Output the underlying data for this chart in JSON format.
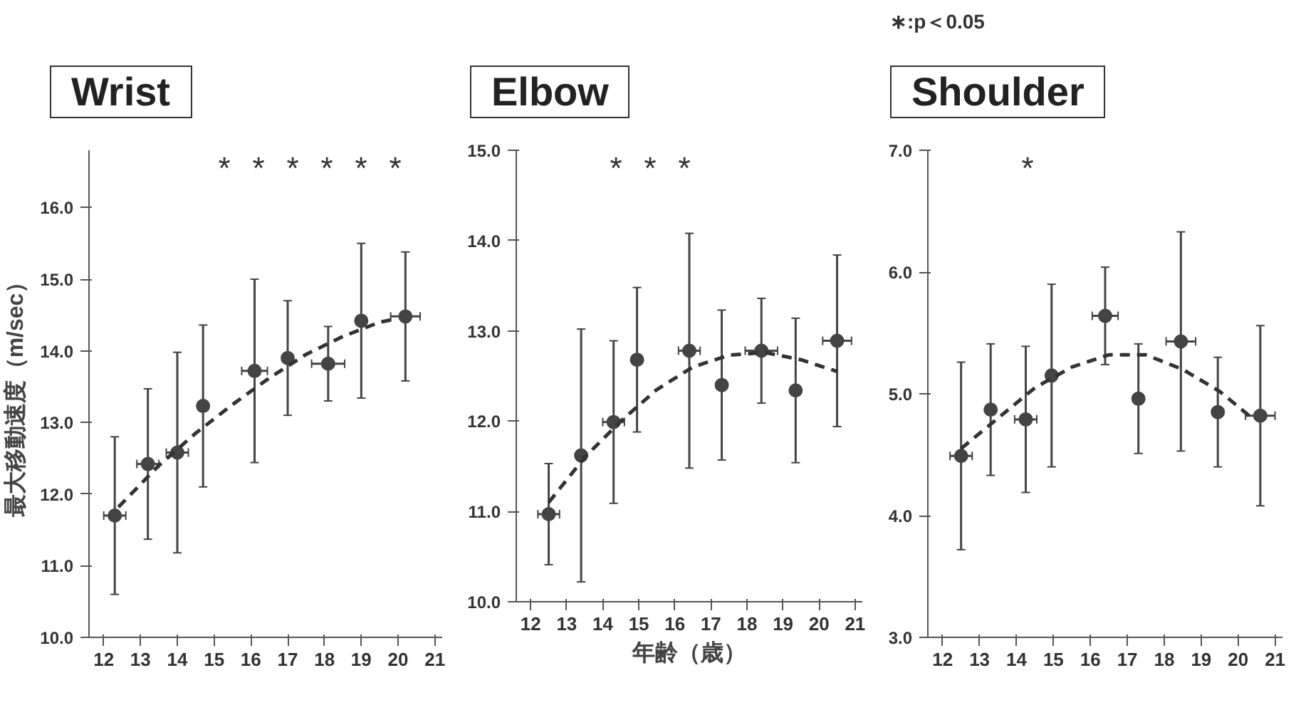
{
  "chart_data": [
    {
      "type": "scatter",
      "title": "Wrist",
      "ylabel": "最大移動速度（m/sec）",
      "xlim": [
        11.6,
        21.2
      ],
      "ylim": [
        10.0,
        16.8
      ],
      "xticks": [
        12,
        13,
        14,
        15,
        16,
        17,
        18,
        19,
        20,
        21
      ],
      "yticks": [
        {
          "value": 10,
          "label": "10.0"
        },
        {
          "value": 11,
          "label": "11.0"
        },
        {
          "value": 12,
          "label": "12.0"
        },
        {
          "value": 13,
          "label": "13.0"
        },
        {
          "value": 14,
          "label": "14.0"
        },
        {
          "value": 15,
          "label": "15.0"
        },
        {
          "value": 16,
          "label": "16.0"
        }
      ],
      "grid": false,
      "series": [
        {
          "marker": "circle",
          "color": "#444444",
          "x": [
            12.3,
            13.2,
            14.0,
            14.7,
            16.1,
            17.0,
            18.1,
            19.0,
            20.2
          ],
          "values": [
            11.7,
            12.42,
            12.58,
            13.23,
            13.72,
            13.9,
            13.82,
            14.42,
            14.48
          ],
          "errors": [
            1.1,
            1.05,
            1.4,
            1.13,
            1.28,
            0.8,
            0.52,
            1.08,
            0.9
          ],
          "xerrors": [
            0.3,
            0.3,
            0.3,
            null,
            0.35,
            null,
            0.45,
            null,
            0.4
          ]
        },
        {
          "type": "line",
          "color": "#333333",
          "line_style": "dashed",
          "x": [
            12.4,
            13.5,
            14.5,
            15.5,
            16.5,
            17.5,
            18.5,
            19.5,
            20.0
          ],
          "values": [
            11.82,
            12.4,
            12.85,
            13.25,
            13.62,
            13.95,
            14.2,
            14.4,
            14.45
          ]
        }
      ],
      "annotations": [
        "*",
        "*",
        "*",
        "*",
        "*",
        "*"
      ]
    },
    {
      "type": "scatter",
      "title": "Elbow",
      "xlabel": "年齢（歳）",
      "xlim": [
        11.6,
        21.2
      ],
      "ylim": [
        10.0,
        15.0
      ],
      "xticks": [
        12,
        13,
        14,
        15,
        16,
        17,
        18,
        19,
        20,
        21
      ],
      "yticks": [
        {
          "value": 10,
          "label": "10.0"
        },
        {
          "value": 11,
          "label": "11.0"
        },
        {
          "value": 12,
          "label": "12.0"
        },
        {
          "value": 13,
          "label": "13.0"
        },
        {
          "value": 14,
          "label": "14.0"
        },
        {
          "value": 15,
          "label": "15.0"
        }
      ],
      "grid": false,
      "series": [
        {
          "marker": "circle",
          "color": "#444444",
          "x": [
            12.5,
            13.4,
            14.3,
            14.95,
            16.4,
            17.3,
            18.4,
            19.35,
            20.5
          ],
          "values": [
            10.97,
            11.62,
            11.99,
            12.68,
            12.78,
            12.4,
            12.78,
            12.34,
            12.89
          ],
          "errors": [
            0.56,
            1.4,
            0.9,
            0.8,
            1.3,
            0.83,
            0.58,
            0.8,
            0.95
          ],
          "xerrors": [
            0.3,
            null,
            0.3,
            null,
            0.3,
            null,
            0.45,
            null,
            0.4
          ]
        },
        {
          "type": "line",
          "color": "#333333",
          "line_style": "dashed",
          "x": [
            12.5,
            13.5,
            14.5,
            15.5,
            16.5,
            17.5,
            18.5,
            19.5,
            20.5
          ],
          "values": [
            11.1,
            11.6,
            12.0,
            12.35,
            12.6,
            12.73,
            12.76,
            12.68,
            12.55
          ]
        }
      ],
      "annotations": [
        "*",
        "*",
        "*"
      ]
    },
    {
      "type": "scatter",
      "title": "Shoulder",
      "subtitle": "∗:p＜0.05",
      "xlim": [
        11.6,
        21.2
      ],
      "ylim": [
        3.0,
        7.0
      ],
      "xticks": [
        12,
        13,
        14,
        15,
        16,
        17,
        18,
        19,
        20,
        21
      ],
      "yticks": [
        {
          "value": 3,
          "label": "3.0"
        },
        {
          "value": 4,
          "label": "4.0"
        },
        {
          "value": 5,
          "label": "5.0"
        },
        {
          "value": 6,
          "label": "6.0"
        },
        {
          "value": 7,
          "label": "7.0"
        }
      ],
      "grid": false,
      "series": [
        {
          "marker": "circle",
          "color": "#444444",
          "x": [
            12.5,
            13.3,
            14.25,
            14.95,
            16.4,
            17.3,
            18.45,
            19.45,
            20.6
          ],
          "values": [
            4.49,
            4.87,
            4.79,
            5.15,
            5.64,
            4.96,
            5.43,
            4.85,
            4.82
          ],
          "errors": [
            0.77,
            0.54,
            0.6,
            0.75,
            0.4,
            0.45,
            0.9,
            0.45,
            0.74
          ],
          "xerrors": [
            0.3,
            null,
            0.3,
            null,
            0.35,
            null,
            0.4,
            null,
            0.4
          ]
        },
        {
          "type": "line",
          "color": "#333333",
          "line_style": "dashed",
          "x": [
            12.5,
            13.5,
            14.5,
            15.5,
            16.5,
            17.5,
            18.5,
            19.5,
            20.3
          ],
          "values": [
            4.55,
            4.8,
            5.05,
            5.22,
            5.32,
            5.32,
            5.2,
            5.02,
            4.82
          ]
        }
      ],
      "annotations": [
        "*"
      ]
    }
  ]
}
